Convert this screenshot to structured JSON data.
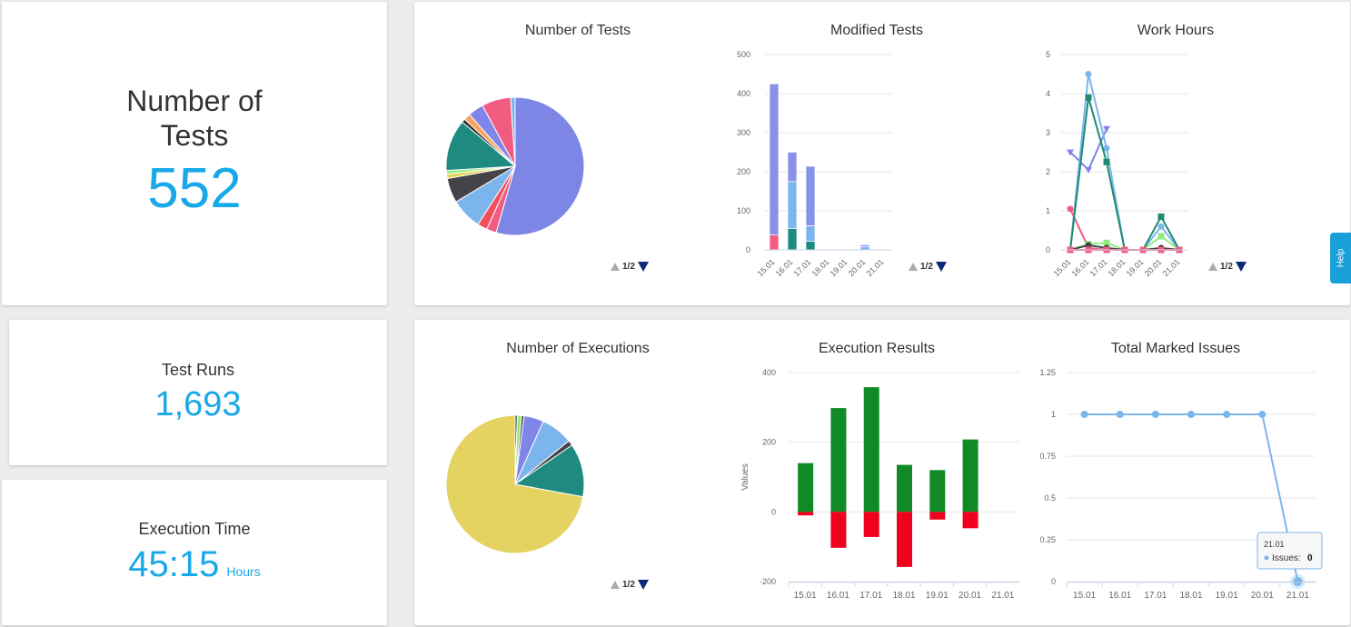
{
  "kpis": {
    "tests": {
      "title": "Number of\nTests",
      "value": "552"
    },
    "runs": {
      "title": "Test Runs",
      "value": "1,693"
    },
    "exec_time": {
      "title": "Execution Time",
      "value": "45:15",
      "unit": "Hours"
    }
  },
  "pager_label": "1/2",
  "help_label": "Help",
  "colors": {
    "accent": "#19a8e8",
    "green": "#0f8a25",
    "red": "#ef001c"
  },
  "chart_data": [
    {
      "id": "num_tests",
      "type": "pie",
      "title": "Number of Tests",
      "slices": [
        {
          "value": 52,
          "color": "#7d86e4"
        },
        {
          "value": 2.2,
          "color": "#f25c82"
        },
        {
          "value": 2.2,
          "color": "#f14d5a"
        },
        {
          "value": 7,
          "color": "#7cb5ec"
        },
        {
          "value": 5.5,
          "color": "#434348"
        },
        {
          "value": 1,
          "color": "#e4d354"
        },
        {
          "value": 0.8,
          "color": "#90ed7d"
        },
        {
          "value": 11.5,
          "color": "#1f8b80"
        },
        {
          "value": 0.8,
          "color": "#2b2b2b"
        },
        {
          "value": 1.5,
          "color": "#f7a35c"
        },
        {
          "value": 3.5,
          "color": "#8085e9"
        },
        {
          "value": 6.5,
          "color": "#f15c80"
        },
        {
          "value": 1,
          "color": "#7cb5ec"
        }
      ]
    },
    {
      "id": "modified_tests",
      "type": "bar",
      "title": "Modified Tests",
      "categories": [
        "15.01",
        "16.01",
        "17.01",
        "18.01",
        "19.01",
        "20.01",
        "21.01"
      ],
      "ylim": [
        0,
        500
      ],
      "yticks": [
        0,
        100,
        200,
        300,
        400,
        500
      ],
      "stacked": true,
      "series": [
        {
          "color": "#f25c82",
          "values": [
            38,
            0,
            0,
            0,
            0,
            0,
            0
          ]
        },
        {
          "color": "#1f8b80",
          "values": [
            0,
            55,
            22,
            0,
            0,
            0,
            0
          ]
        },
        {
          "color": "#7cb5ec",
          "values": [
            0,
            120,
            40,
            0,
            0,
            8,
            0
          ]
        },
        {
          "color": "#8891e8",
          "values": [
            387,
            75,
            152,
            0,
            0,
            5,
            0
          ]
        }
      ]
    },
    {
      "id": "work_hours",
      "type": "line",
      "title": "Work Hours",
      "categories": [
        "15.01",
        "16.01",
        "17.01",
        "18.01",
        "19.01",
        "20.01",
        "21.01"
      ],
      "ylim": [
        0,
        5
      ],
      "yticks": [
        0,
        1,
        2,
        3,
        4,
        5
      ],
      "series": [
        {
          "color": "#f25c82",
          "marker": "circle",
          "values": [
            1.05,
            0.05,
            0.0,
            0.0,
            0.0,
            0.0,
            0.0
          ]
        },
        {
          "color": "#8085e9",
          "marker": "triangle-down",
          "values": [
            2.5,
            2.05,
            3.1,
            null,
            null,
            null,
            null
          ]
        },
        {
          "color": "#7cb5ec",
          "marker": "circle",
          "values": [
            0.0,
            4.5,
            2.6,
            0.0,
            0.0,
            0.6,
            0.0
          ]
        },
        {
          "color": "#1f8b70",
          "marker": "square",
          "values": [
            0.0,
            3.9,
            2.25,
            0.0,
            0.0,
            0.85,
            0.0
          ]
        },
        {
          "color": "#90ed7d",
          "marker": "square",
          "values": [
            0.0,
            0.15,
            0.18,
            0.0,
            0.0,
            0.35,
            0.0
          ]
        },
        {
          "color": "#434348",
          "marker": "circle",
          "values": [
            0.0,
            0.12,
            0.05,
            0.0,
            0.0,
            0.05,
            0.0
          ]
        },
        {
          "color": "#f25c82",
          "marker": "square",
          "values": [
            0.0,
            0.0,
            0.0,
            0.0,
            0.0,
            0.0,
            0.0
          ]
        }
      ]
    },
    {
      "id": "num_exec",
      "type": "pie",
      "title": "Number of Executions",
      "slices": [
        {
          "value": 0.5,
          "color": "#2b2b2b"
        },
        {
          "value": 1,
          "color": "#90ed7d"
        },
        {
          "value": 0.6,
          "color": "#434348"
        },
        {
          "value": 4.6,
          "color": "#8085e9"
        },
        {
          "value": 7.5,
          "color": "#7cb5ec"
        },
        {
          "value": 1.2,
          "color": "#434348"
        },
        {
          "value": 12.5,
          "color": "#1f8b80"
        },
        {
          "value": 72.1,
          "color": "#e4d360"
        }
      ]
    },
    {
      "id": "exec_results",
      "type": "bar",
      "title": "Execution Results",
      "categories": [
        "15.01",
        "16.01",
        "17.01",
        "18.01",
        "19.01",
        "20.01",
        "21.01"
      ],
      "ylabel": "Values",
      "ylim": [
        -200,
        400
      ],
      "yticks": [
        -200,
        0,
        200,
        400
      ],
      "series": [
        {
          "color": "#0f8a25",
          "values": [
            140,
            298,
            358,
            135,
            120,
            208,
            0
          ]
        },
        {
          "color": "#ef001c",
          "values": [
            -10,
            -103,
            -72,
            -158,
            -22,
            -47,
            0
          ]
        }
      ]
    },
    {
      "id": "marked_issues",
      "type": "line",
      "title": "Total Marked Issues",
      "categories": [
        "15.01",
        "16.01",
        "17.01",
        "18.01",
        "19.01",
        "20.01",
        "21.01"
      ],
      "ylim": [
        0,
        1.25
      ],
      "yticks": [
        "0",
        "0.25",
        "0.5",
        "0.75",
        "1",
        "1.25"
      ],
      "series": [
        {
          "name": "Issues",
          "color": "#7cb5ec",
          "values": [
            1,
            1,
            1,
            1,
            1,
            1,
            0
          ]
        }
      ],
      "tooltip": {
        "date": "21.01",
        "series": "Issues",
        "value": "0"
      }
    }
  ]
}
